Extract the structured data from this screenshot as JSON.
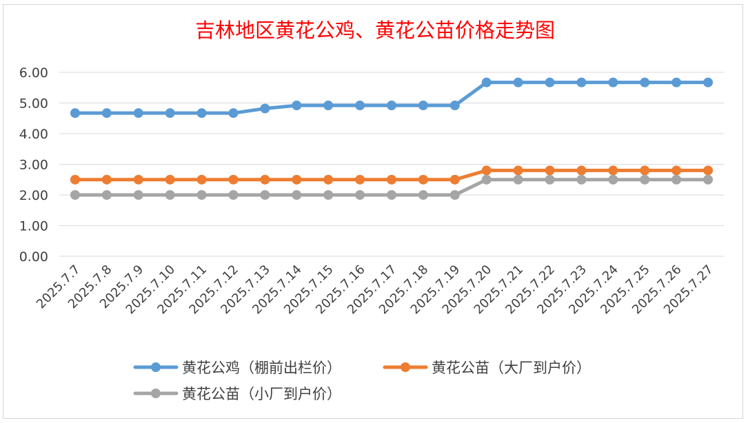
{
  "chart_data": {
    "type": "line",
    "title": "吉林地区黄花公鸡、黄花公苗价格走势图",
    "xlabel": "",
    "ylabel": "",
    "ylim": [
      0,
      6
    ],
    "yticks": [
      "0.00",
      "1.00",
      "2.00",
      "3.00",
      "4.00",
      "5.00",
      "6.00"
    ],
    "grid": true,
    "legend_position": "bottom",
    "categories": [
      "2025.7.7",
      "2025.7.8",
      "2025.7.9",
      "2025.7.10",
      "2025.7.11",
      "2025.7.12",
      "2025.7.13",
      "2025.7.14",
      "2025.7.15",
      "2025.7.16",
      "2025.7.17",
      "2025.7.18",
      "2025.7.19",
      "2025.7.20",
      "2025.7.21",
      "2025.7.22",
      "2025.7.23",
      "2025.7.24",
      "2025.7.25",
      "2025.7.26",
      "2025.7.27"
    ],
    "series": [
      {
        "name": "黄花公鸡（棚前出栏价）",
        "color": "#5b9bd5",
        "values": [
          4.67,
          4.67,
          4.67,
          4.67,
          4.67,
          4.67,
          4.82,
          4.92,
          4.92,
          4.92,
          4.92,
          4.92,
          4.92,
          5.67,
          5.67,
          5.67,
          5.67,
          5.67,
          5.67,
          5.67,
          5.67
        ]
      },
      {
        "name": "黄花公苗（大厂到户价）",
        "color": "#ed7d31",
        "values": [
          2.5,
          2.5,
          2.5,
          2.5,
          2.5,
          2.5,
          2.5,
          2.5,
          2.5,
          2.5,
          2.5,
          2.5,
          2.5,
          2.8,
          2.8,
          2.8,
          2.8,
          2.8,
          2.8,
          2.8,
          2.8
        ]
      },
      {
        "name": "黄花公苗（小厂到户价）",
        "color": "#a5a5a5",
        "values": [
          2.0,
          2.0,
          2.0,
          2.0,
          2.0,
          2.0,
          2.0,
          2.0,
          2.0,
          2.0,
          2.0,
          2.0,
          2.0,
          2.5,
          2.5,
          2.5,
          2.5,
          2.5,
          2.5,
          2.5,
          2.5
        ]
      }
    ]
  }
}
